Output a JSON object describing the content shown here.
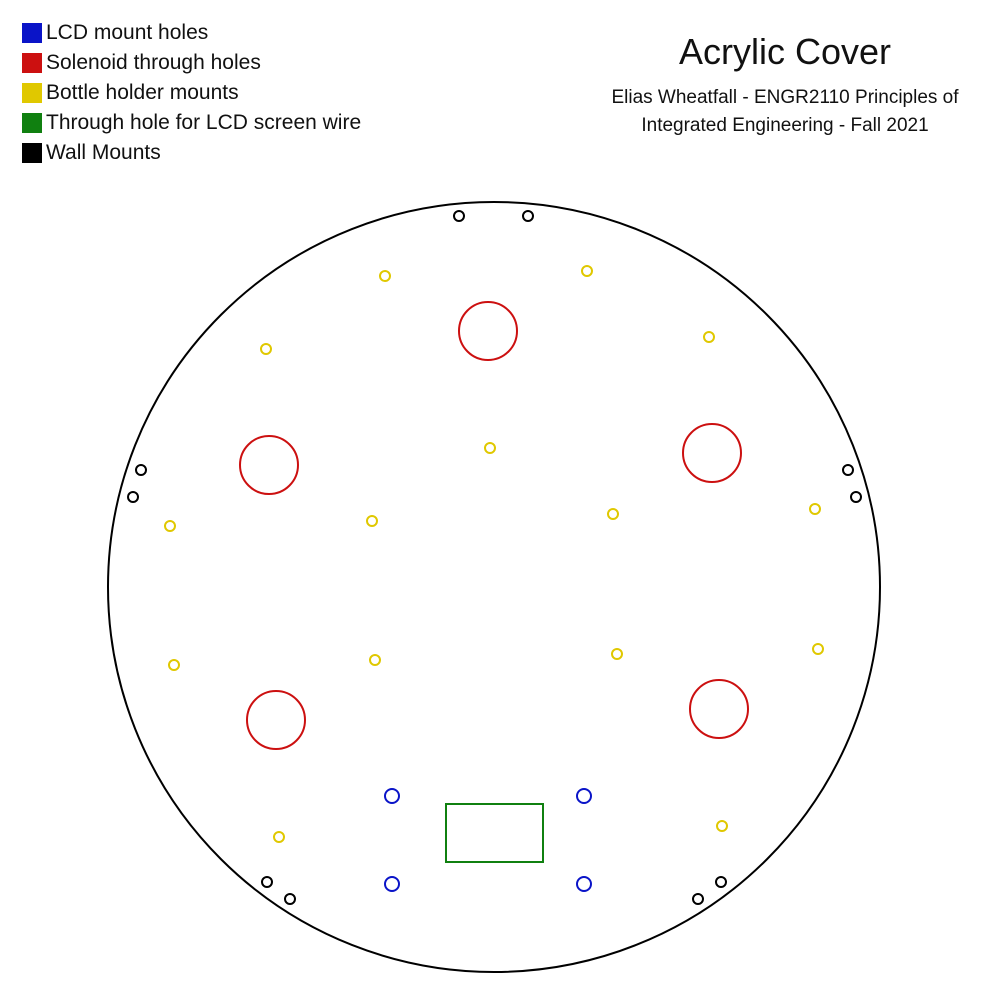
{
  "legend": [
    {
      "label": "LCD mount holes",
      "color": "#0a14c8"
    },
    {
      "label": "Solenoid through holes",
      "color": "#cc1010"
    },
    {
      "label": "Bottle holder mounts",
      "color": "#e0c800"
    },
    {
      "label": "Through hole for LCD screen wire",
      "color": "#108010"
    },
    {
      "label": "Wall Mounts",
      "color": "#000000"
    }
  ],
  "title": "Acrylic Cover",
  "subtitle": "Elias Wheatfall - ENGR2110 Principles of\nIntegrated Engineering - Fall 2021"
}
